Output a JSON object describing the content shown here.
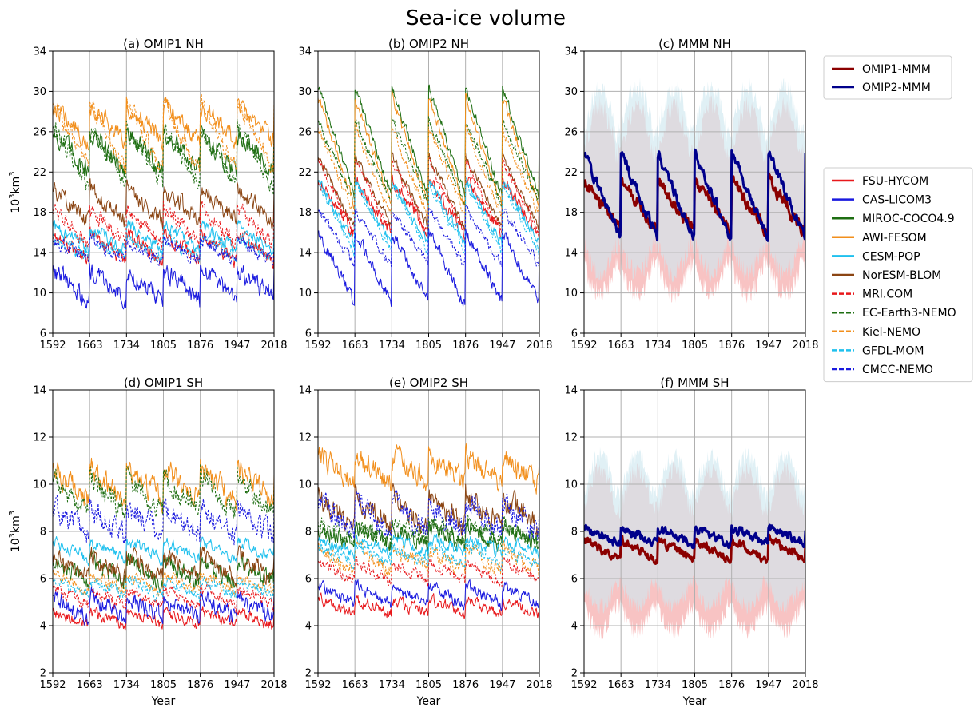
{
  "figure": {
    "title": "Sea-ice volume",
    "ylabel_base": "10",
    "ylabel_exp1": "3",
    "ylabel_mid": "km",
    "ylabel_exp2": "3"
  },
  "chart_data": [
    {
      "id": "a",
      "type": "line",
      "title": "(a) OMIP1 NH",
      "xlabel": "",
      "ylabel": "10³km³",
      "xlim": [
        1592,
        2018
      ],
      "ylim": [
        6,
        34
      ],
      "xticks": [
        1592,
        1663,
        1734,
        1805,
        1876,
        1947,
        2018
      ],
      "yticks": [
        6,
        10,
        14,
        18,
        22,
        26,
        30,
        34
      ],
      "grid": true,
      "series": [
        {
          "name": "FSU-HYCOM",
          "color": "#e8181b",
          "dash": false,
          "mean": 14.5,
          "amp": 1.4,
          "noise": 0.6
        },
        {
          "name": "CAS-LICOM3",
          "color": "#1a1adf",
          "dash": false,
          "mean": 10.8,
          "amp": 1.5,
          "noise": 0.8
        },
        {
          "name": "MIROC-COCO4.9",
          "color": "#1e6e12",
          "dash": false,
          "mean": 24.0,
          "amp": 1.9,
          "noise": 0.8
        },
        {
          "name": "AWI-FESOM",
          "color": "#f28f1c",
          "dash": false,
          "mean": 26.8,
          "amp": 1.8,
          "noise": 0.7
        },
        {
          "name": "CESM-POP",
          "color": "#1ec0ee",
          "dash": false,
          "mean": 15.5,
          "amp": 1.2,
          "noise": 0.5
        },
        {
          "name": "NorESM-BLOM",
          "color": "#8b4513",
          "dash": false,
          "mean": 18.8,
          "amp": 1.6,
          "noise": 0.7
        },
        {
          "name": "MRI.COM",
          "color": "#e8181b",
          "dash": true,
          "mean": 16.6,
          "amp": 2.0,
          "noise": 0.6
        },
        {
          "name": "EC-Earth3-NEMO",
          "color": "#1e6e12",
          "dash": true,
          "mean": 23.5,
          "amp": 3.0,
          "noise": 0.7
        },
        {
          "name": "Kiel-NEMO",
          "color": "#f28f1c",
          "dash": true,
          "mean": 25.5,
          "amp": 3.6,
          "noise": 0.7
        },
        {
          "name": "GFDL-MOM",
          "color": "#1ec0ee",
          "dash": true,
          "mean": 14.5,
          "amp": 1.0,
          "noise": 0.5
        },
        {
          "name": "CMCC-NEMO",
          "color": "#1a1adf",
          "dash": true,
          "mean": 14.2,
          "amp": 1.0,
          "noise": 0.5
        }
      ]
    },
    {
      "id": "b",
      "type": "line",
      "title": "(b) OMIP2 NH",
      "xlabel": "",
      "ylabel": "",
      "xlim": [
        1592,
        2018
      ],
      "ylim": [
        6,
        34
      ],
      "xticks": [
        1592,
        1663,
        1734,
        1805,
        1876,
        1947,
        2018
      ],
      "yticks": [
        6,
        10,
        14,
        18,
        22,
        26,
        30,
        34
      ],
      "grid": true,
      "series": [
        {
          "name": "FSU-HYCOM",
          "color": "#e8181b",
          "dash": false,
          "mean": 18.6,
          "amp": 2.8,
          "noise": 0.5
        },
        {
          "name": "CAS-LICOM3",
          "color": "#1a1adf",
          "dash": false,
          "mean": 12.5,
          "amp": 3.6,
          "noise": 0.5
        },
        {
          "name": "MIROC-COCO4.9",
          "color": "#1e6e12",
          "dash": false,
          "mean": 25.0,
          "amp": 5.5,
          "noise": 0.4
        },
        {
          "name": "AWI-FESOM",
          "color": "#f28f1c",
          "dash": false,
          "mean": 24.0,
          "amp": 5.5,
          "noise": 0.4
        },
        {
          "name": "CESM-POP",
          "color": "#1ec0ee",
          "dash": false,
          "mean": 18.0,
          "amp": 3.2,
          "noise": 0.4
        },
        {
          "name": "NorESM-BLOM",
          "color": "#8b4513",
          "dash": false,
          "mean": 20.0,
          "amp": 3.6,
          "noise": 0.4
        },
        {
          "name": "MRI.COM",
          "color": "#e8181b",
          "dash": true,
          "mean": 19.5,
          "amp": 3.6,
          "noise": 0.4
        },
        {
          "name": "EC-Earth3-NEMO",
          "color": "#1e6e12",
          "dash": true,
          "mean": 23.0,
          "amp": 4.2,
          "noise": 0.4
        },
        {
          "name": "Kiel-NEMO",
          "color": "#f28f1c",
          "dash": true,
          "mean": 22.0,
          "amp": 4.5,
          "noise": 0.4
        },
        {
          "name": "GFDL-MOM",
          "color": "#1ec0ee",
          "dash": true,
          "mean": 17.5,
          "amp": 3.5,
          "noise": 0.4
        },
        {
          "name": "CMCC-NEMO",
          "color": "#1a1adf",
          "dash": true,
          "mean": 15.5,
          "amp": 2.8,
          "noise": 0.4
        }
      ]
    },
    {
      "id": "c",
      "type": "line",
      "title": "(c) MMM NH",
      "xlabel": "",
      "ylabel": "",
      "xlim": [
        1592,
        2018
      ],
      "ylim": [
        6,
        34
      ],
      "xticks": [
        1592,
        1663,
        1734,
        1805,
        1876,
        1947,
        2018
      ],
      "yticks": [
        6,
        10,
        14,
        18,
        22,
        26,
        30,
        34
      ],
      "grid": true,
      "bands": [
        {
          "name": "OMIP1 spread",
          "color": "#f7b9b9",
          "lo": 10.0,
          "hi": 28.5
        },
        {
          "name": "OMIP2 spread",
          "color": "#cfe8ef",
          "lo": 12.0,
          "hi": 30.5
        }
      ],
      "series": [
        {
          "name": "OMIP1-MMM",
          "color": "#8b0000",
          "dash": false,
          "mean": 18.6,
          "amp": 2.6,
          "noise": 0.5,
          "width": 3
        },
        {
          "name": "OMIP2-MMM",
          "color": "#00008b",
          "dash": false,
          "mean": 19.6,
          "amp": 4.3,
          "noise": 0.4,
          "width": 3
        }
      ]
    },
    {
      "id": "d",
      "type": "line",
      "title": "(d) OMIP1 SH",
      "xlabel": "Year",
      "ylabel": "10³km³",
      "xlim": [
        1592,
        2018
      ],
      "ylim": [
        2,
        14
      ],
      "xticks": [
        1592,
        1663,
        1734,
        1805,
        1876,
        1947,
        2018
      ],
      "yticks": [
        2,
        4,
        6,
        8,
        10,
        12,
        14
      ],
      "grid": true,
      "series": [
        {
          "name": "FSU-HYCOM",
          "color": "#e8181b",
          "dash": false,
          "mean": 4.3,
          "amp": 0.3,
          "noise": 0.2
        },
        {
          "name": "CAS-LICOM3",
          "color": "#1a1adf",
          "dash": false,
          "mean": 4.8,
          "amp": 0.5,
          "noise": 0.3
        },
        {
          "name": "MIROC-COCO4.9",
          "color": "#1e6e12",
          "dash": false,
          "mean": 6.3,
          "amp": 0.5,
          "noise": 0.3
        },
        {
          "name": "AWI-FESOM",
          "color": "#f28f1c",
          "dash": false,
          "mean": 10.0,
          "amp": 0.7,
          "noise": 0.4
        },
        {
          "name": "CESM-POP",
          "color": "#1ec0ee",
          "dash": false,
          "mean": 7.2,
          "amp": 0.4,
          "noise": 0.2
        },
        {
          "name": "NorESM-BLOM",
          "color": "#8b4513",
          "dash": false,
          "mean": 6.5,
          "amp": 0.5,
          "noise": 0.3
        },
        {
          "name": "MRI.COM",
          "color": "#e8181b",
          "dash": true,
          "mean": 5.2,
          "amp": 0.4,
          "noise": 0.2
        },
        {
          "name": "EC-Earth3-NEMO",
          "color": "#1e6e12",
          "dash": true,
          "mean": 9.5,
          "amp": 0.8,
          "noise": 0.4
        },
        {
          "name": "Kiel-NEMO",
          "color": "#f28f1c",
          "dash": true,
          "mean": 5.8,
          "amp": 0.4,
          "noise": 0.2
        },
        {
          "name": "GFDL-MOM",
          "color": "#1ec0ee",
          "dash": true,
          "mean": 5.6,
          "amp": 0.3,
          "noise": 0.2
        },
        {
          "name": "CMCC-NEMO",
          "color": "#1a1adf",
          "dash": true,
          "mean": 8.4,
          "amp": 0.6,
          "noise": 0.4
        }
      ]
    },
    {
      "id": "e",
      "type": "line",
      "title": "(e) OMIP2 SH",
      "xlabel": "Year",
      "ylabel": "",
      "xlim": [
        1592,
        2018
      ],
      "ylim": [
        2,
        14
      ],
      "xticks": [
        1592,
        1663,
        1734,
        1805,
        1876,
        1947,
        2018
      ],
      "yticks": [
        2,
        4,
        6,
        8,
        10,
        12,
        14
      ],
      "grid": true,
      "series": [
        {
          "name": "FSU-HYCOM",
          "color": "#e8181b",
          "dash": false,
          "mean": 4.8,
          "amp": 0.3,
          "noise": 0.2
        },
        {
          "name": "CAS-LICOM3",
          "color": "#1a1adf",
          "dash": false,
          "mean": 5.3,
          "amp": 0.4,
          "noise": 0.2
        },
        {
          "name": "MIROC-COCO4.9",
          "color": "#1e6e12",
          "dash": false,
          "mean": 7.8,
          "amp": 0.4,
          "noise": 0.3
        },
        {
          "name": "AWI-FESOM",
          "color": "#f28f1c",
          "dash": false,
          "mean": 10.6,
          "amp": 0.6,
          "noise": 0.4
        },
        {
          "name": "CESM-POP",
          "color": "#1ec0ee",
          "dash": false,
          "mean": 7.4,
          "amp": 0.3,
          "noise": 0.2
        },
        {
          "name": "NorESM-BLOM",
          "color": "#8b4513",
          "dash": false,
          "mean": 8.8,
          "amp": 0.7,
          "noise": 0.4
        },
        {
          "name": "MRI.COM",
          "color": "#e8181b",
          "dash": true,
          "mean": 6.3,
          "amp": 0.4,
          "noise": 0.2
        },
        {
          "name": "EC-Earth3-NEMO",
          "color": "#1e6e12",
          "dash": true,
          "mean": 8.0,
          "amp": 0.4,
          "noise": 0.3
        },
        {
          "name": "Kiel-NEMO",
          "color": "#f28f1c",
          "dash": true,
          "mean": 6.8,
          "amp": 0.5,
          "noise": 0.3
        },
        {
          "name": "GFDL-MOM",
          "color": "#1ec0ee",
          "dash": true,
          "mean": 7.0,
          "amp": 0.4,
          "noise": 0.2
        },
        {
          "name": "CMCC-NEMO",
          "color": "#1a1adf",
          "dash": true,
          "mean": 8.6,
          "amp": 0.7,
          "noise": 0.4
        }
      ]
    },
    {
      "id": "f",
      "type": "line",
      "title": "(f) MMM SH",
      "xlabel": "Year",
      "ylabel": "",
      "xlim": [
        1592,
        2018
      ],
      "ylim": [
        2,
        14
      ],
      "xticks": [
        1592,
        1663,
        1734,
        1805,
        1876,
        1947,
        2018
      ],
      "yticks": [
        2,
        4,
        6,
        8,
        10,
        12,
        14
      ],
      "grid": true,
      "bands": [
        {
          "name": "OMIP1 spread",
          "color": "#f7b9b9",
          "lo": 3.8,
          "hi": 10.6
        },
        {
          "name": "OMIP2 spread",
          "color": "#cfe8ef",
          "lo": 4.8,
          "hi": 11.2
        }
      ],
      "series": [
        {
          "name": "OMIP1-MMM",
          "color": "#8b0000",
          "dash": false,
          "mean": 7.2,
          "amp": 0.45,
          "noise": 0.15,
          "width": 3
        },
        {
          "name": "OMIP2-MMM",
          "color": "#00008b",
          "dash": false,
          "mean": 7.8,
          "amp": 0.35,
          "noise": 0.15,
          "width": 3
        }
      ]
    }
  ],
  "legend_mmm": {
    "placement": "right of panel (c), top",
    "entries": [
      {
        "label": "OMIP1-MMM",
        "color": "#8b0000",
        "dash": false
      },
      {
        "label": "OMIP2-MMM",
        "color": "#00008b",
        "dash": false
      }
    ]
  },
  "legend_models": {
    "placement": "right of panel (c), middle",
    "entries": [
      {
        "label": "FSU-HYCOM",
        "color": "#e8181b",
        "dash": false
      },
      {
        "label": "CAS-LICOM3",
        "color": "#1a1adf",
        "dash": false
      },
      {
        "label": "MIROC-COCO4.9",
        "color": "#1e6e12",
        "dash": false
      },
      {
        "label": "AWI-FESOM",
        "color": "#f28f1c",
        "dash": false
      },
      {
        "label": "CESM-POP",
        "color": "#1ec0ee",
        "dash": false
      },
      {
        "label": "NorESM-BLOM",
        "color": "#8b4513",
        "dash": false
      },
      {
        "label": "MRI.COM",
        "color": "#e8181b",
        "dash": true
      },
      {
        "label": "EC-Earth3-NEMO",
        "color": "#1e6e12",
        "dash": true
      },
      {
        "label": "Kiel-NEMO",
        "color": "#f28f1c",
        "dash": true
      },
      {
        "label": "GFDL-MOM",
        "color": "#1ec0ee",
        "dash": true
      },
      {
        "label": "CMCC-NEMO",
        "color": "#1a1adf",
        "dash": true
      }
    ]
  }
}
